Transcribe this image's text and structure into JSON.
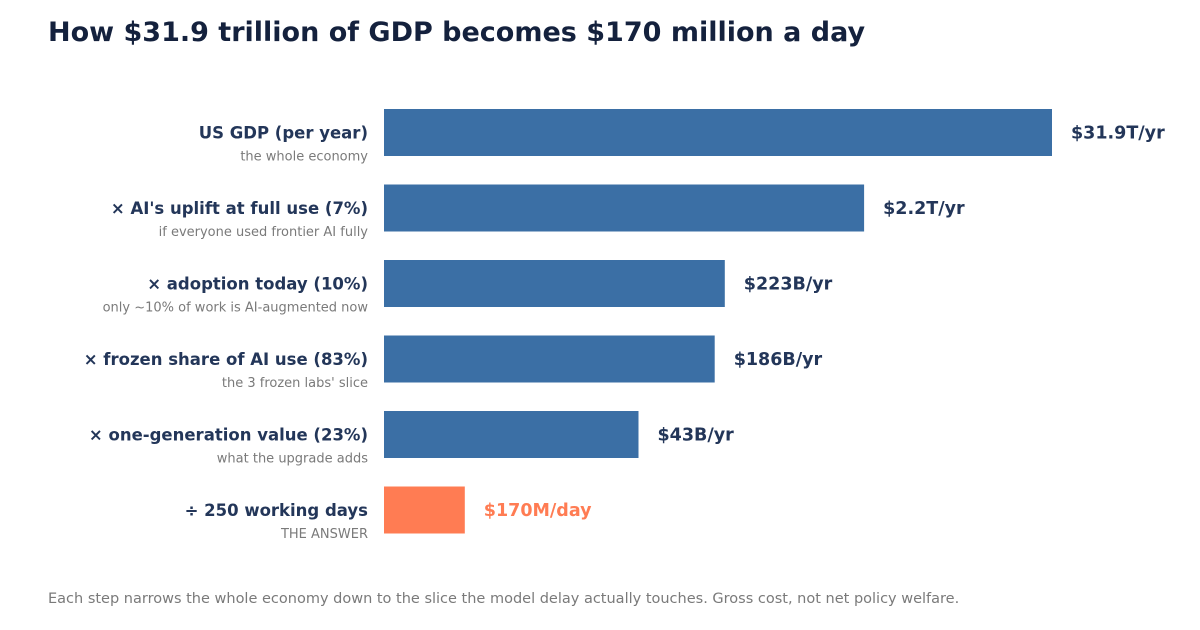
{
  "title": "How $31.9 trillion of GDP becomes $170 million a day",
  "footnote": "Each step narrows the whole economy down to the slice the model delay actually touches.  Gross cost, not net policy welfare.",
  "colors": {
    "bar": "#3b6fa5",
    "highlight": "#ff7c53",
    "label": "#233659",
    "sublabel": "#7a7a7a"
  },
  "chart_data": {
    "type": "bar",
    "orientation": "horizontal",
    "scale": "nonlinear",
    "categories": [
      "US GDP (per year)",
      "× AI's uplift at full use  (7%)",
      "× adoption today  (10%)",
      "× frozen share of AI use  (83%)",
      "× one-generation value  (23%)",
      "÷ 250 working days"
    ],
    "subcategories": [
      "the whole economy",
      "if everyone used frontier AI fully",
      "only ~10% of work is AI-augmented now",
      "the 3 frozen labs' slice",
      "what the upgrade adds",
      "THE ANSWER"
    ],
    "values": [
      31900000000000,
      2200000000000,
      223000000000,
      186000000000,
      43000000000,
      170000000
    ],
    "value_labels": [
      "$31.9T/yr",
      "$2.2T/yr",
      "$223B/yr",
      "$186B/yr",
      "$43B/yr",
      "$170M/day"
    ],
    "highlight_index": 5,
    "title": "How $31.9 trillion of GDP becomes $170 million a day",
    "xlabel": "",
    "ylabel": "",
    "grid": false
  }
}
